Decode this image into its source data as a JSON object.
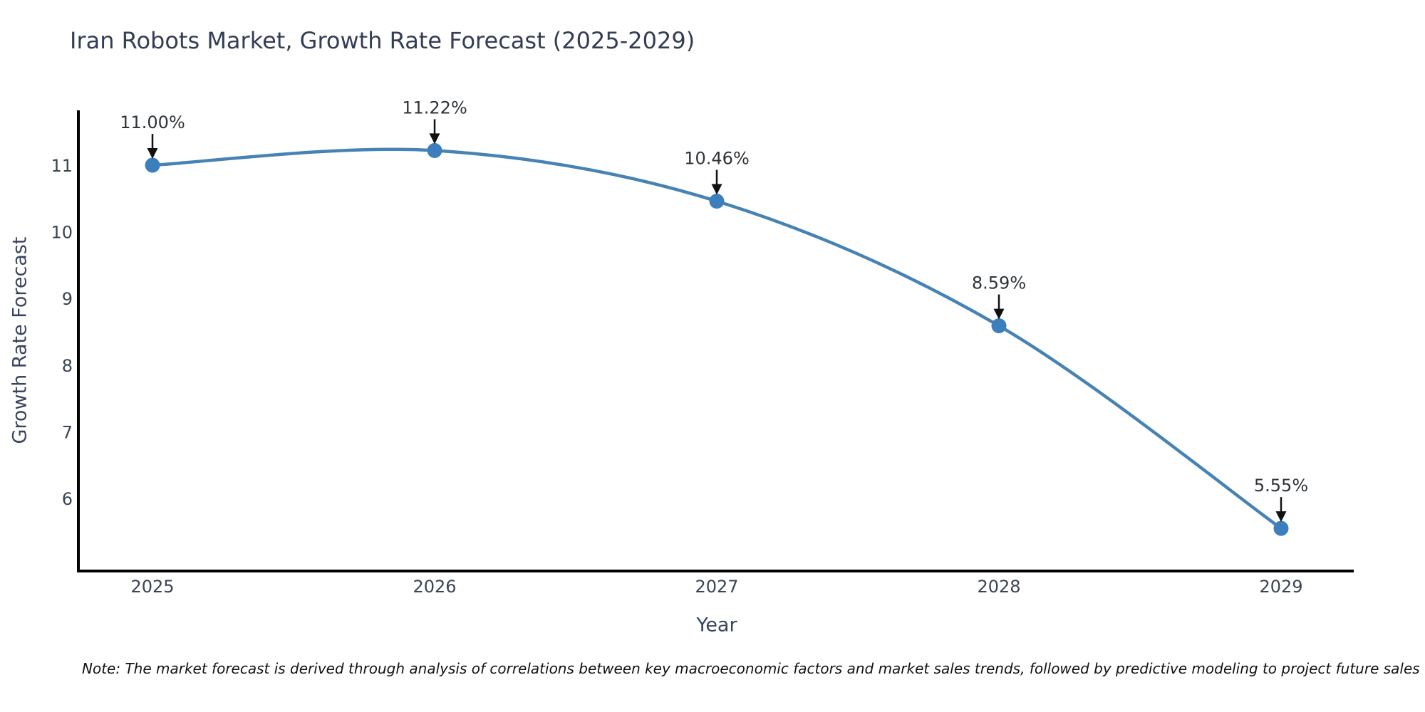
{
  "footnote": "Note: The market forecast is derived through analysis of correlations between key macroeconomic factors and market sales trends, followed by predictive modeling to project future sales",
  "chart_data": {
    "type": "line",
    "title": "Iran Robots Market, Growth Rate Forecast (2025-2029)",
    "xlabel": "Year",
    "ylabel": "Growth Rate Forecast",
    "categories": [
      "2025",
      "2026",
      "2027",
      "2028",
      "2029"
    ],
    "values": [
      11.0,
      11.22,
      10.46,
      8.59,
      5.55
    ],
    "point_labels": [
      "11.00%",
      "11.22%",
      "10.46%",
      "8.59%",
      "5.55%"
    ],
    "yticks": [
      11,
      10,
      9,
      8,
      7,
      6
    ],
    "ylim": [
      4.91,
      11.82
    ],
    "grid": false,
    "legend": "none",
    "smooth": true,
    "line_color": "#4683b4",
    "marker_color": "#3d7ebc",
    "axis_color": "#000000",
    "arrow_color": "#111111",
    "text_color": "#39455e"
  }
}
